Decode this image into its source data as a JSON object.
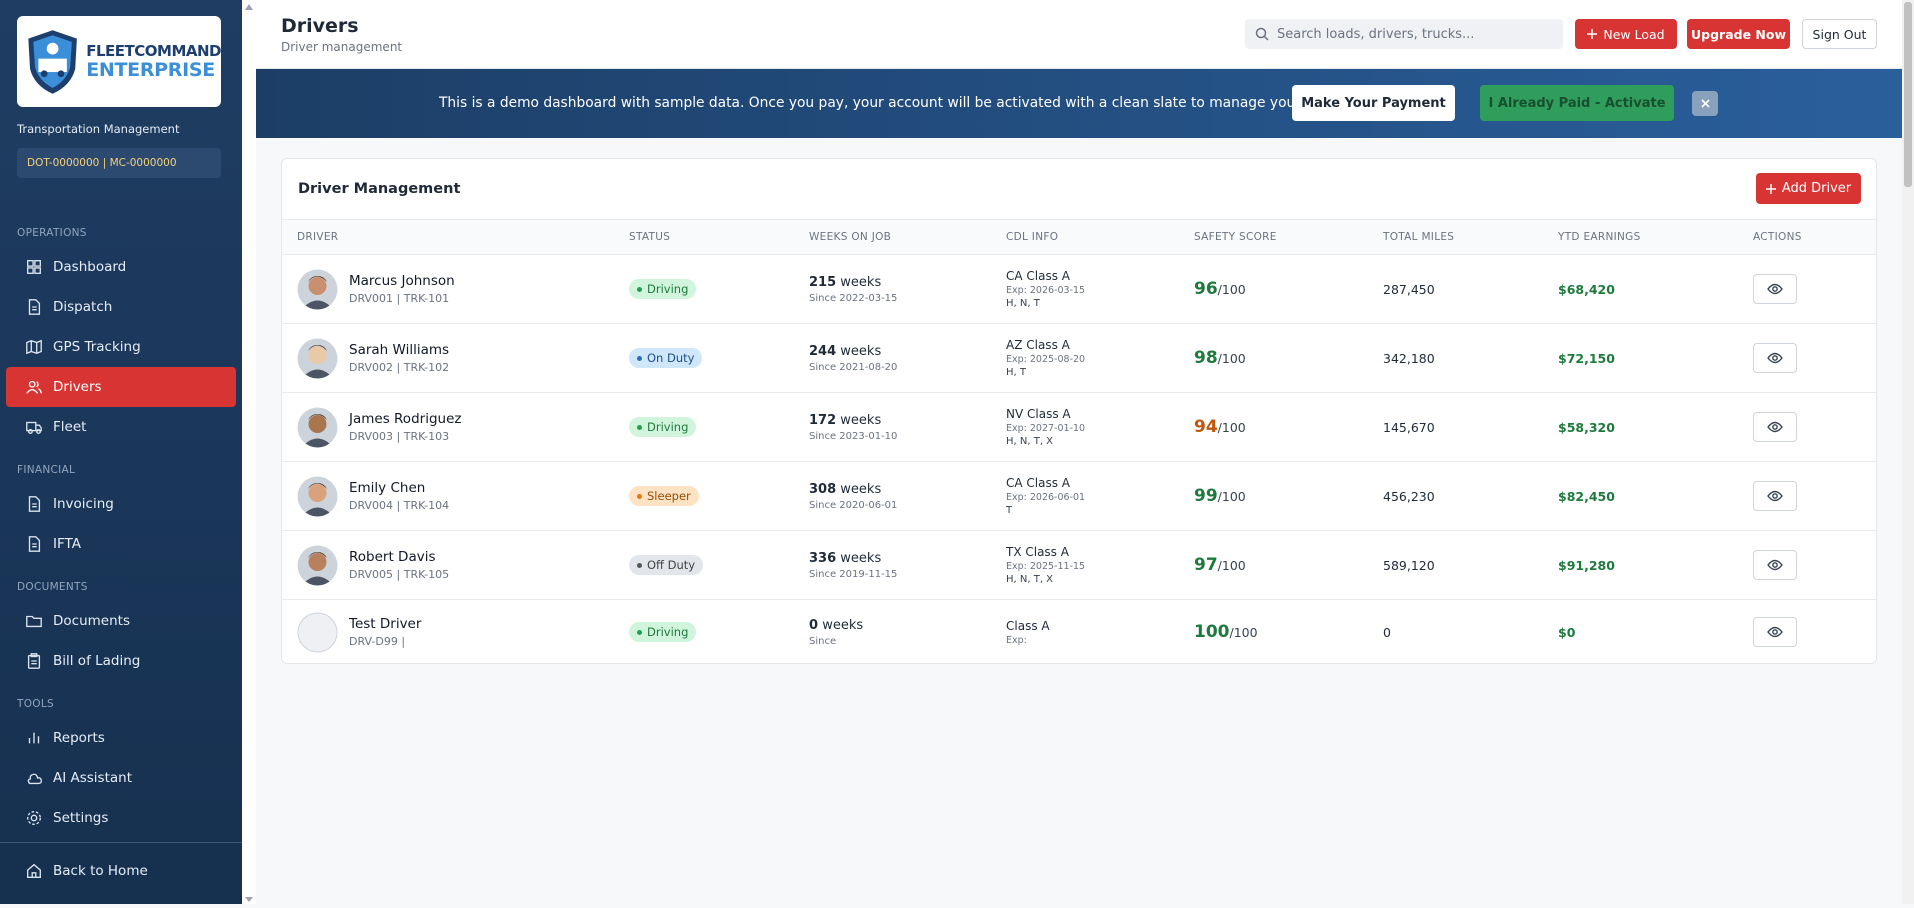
{
  "sidebar": {
    "logo_top": "FLEETCOMMAND",
    "logo_bottom": "ENTERPRISE",
    "subtitle": "Transportation Management",
    "dot": "DOT-0000000 | MC-0000000",
    "sections": [
      {
        "title": "OPERATIONS",
        "items": [
          {
            "label": "Dashboard",
            "icon": "grid"
          },
          {
            "label": "Dispatch",
            "icon": "doc"
          },
          {
            "label": "GPS Tracking",
            "icon": "map"
          },
          {
            "label": "Drivers",
            "icon": "users",
            "active": true
          },
          {
            "label": "Fleet",
            "icon": "truck"
          }
        ]
      },
      {
        "title": "FINANCIAL",
        "items": [
          {
            "label": "Invoicing",
            "icon": "doc"
          },
          {
            "label": "IFTA",
            "icon": "doc"
          }
        ]
      },
      {
        "title": "DOCUMENTS",
        "items": [
          {
            "label": "Documents",
            "icon": "folder"
          },
          {
            "label": "Bill of Lading",
            "icon": "clip"
          }
        ]
      },
      {
        "title": "TOOLS",
        "items": [
          {
            "label": "Reports",
            "icon": "chart"
          },
          {
            "label": "AI Assistant",
            "icon": "cloud"
          },
          {
            "label": "Settings",
            "icon": "gear"
          }
        ]
      }
    ],
    "footer": "Back to Home"
  },
  "header": {
    "title": "Drivers",
    "subtitle": "Driver management",
    "search_placeholder": "Search loads, drivers, trucks...",
    "new_load": "New Load",
    "upgrade": "Upgrade Now",
    "sign_out": "Sign Out"
  },
  "banner": {
    "text": "This is a demo dashboard with sample data. Once you pay, your account will be activated with a clean slate to manage your actual fleet.",
    "pay": "Make Your Payment",
    "paid": "I Already Paid - Activate"
  },
  "table": {
    "title": "Driver Management",
    "add_button": "Add Driver",
    "columns": [
      "DRIVER",
      "STATUS",
      "WEEKS ON JOB",
      "CDL INFO",
      "SAFETY SCORE",
      "TOTAL MILES",
      "YTD EARNINGS",
      "ACTIONS"
    ],
    "rows": [
      {
        "name": "Marcus Johnson",
        "id": "DRV001 | TRK-101",
        "photo": true,
        "status": "Driving",
        "status_tone": "green",
        "weeks": "215",
        "weeks_unit": "weeks",
        "since": "Since 2022-03-15",
        "cdl": "CA Class A",
        "exp": "Exp: 2026-03-15",
        "endorsements": "H, N, T",
        "score": "96",
        "score_max": "/100",
        "score_tone": "green",
        "miles": "287,450",
        "earnings": "$68,420"
      },
      {
        "name": "Sarah Williams",
        "id": "DRV002 | TRK-102",
        "photo": true,
        "status": "On Duty",
        "status_tone": "blue",
        "weeks": "244",
        "weeks_unit": "weeks",
        "since": "Since 2021-08-20",
        "cdl": "AZ Class A",
        "exp": "Exp: 2025-08-20",
        "endorsements": "H, T",
        "score": "98",
        "score_max": "/100",
        "score_tone": "green",
        "miles": "342,180",
        "earnings": "$72,150"
      },
      {
        "name": "James Rodriguez",
        "id": "DRV003 | TRK-103",
        "photo": true,
        "status": "Driving",
        "status_tone": "green",
        "weeks": "172",
        "weeks_unit": "weeks",
        "since": "Since 2023-01-10",
        "cdl": "NV Class A",
        "exp": "Exp: 2027-01-10",
        "endorsements": "H, N, T, X",
        "score": "94",
        "score_max": "/100",
        "score_tone": "orange",
        "miles": "145,670",
        "earnings": "$58,320"
      },
      {
        "name": "Emily Chen",
        "id": "DRV004 | TRK-104",
        "photo": true,
        "status": "Sleeper",
        "status_tone": "orange",
        "weeks": "308",
        "weeks_unit": "weeks",
        "since": "Since 2020-06-01",
        "cdl": "CA Class A",
        "exp": "Exp: 2026-06-01",
        "endorsements": "T",
        "score": "99",
        "score_max": "/100",
        "score_tone": "green",
        "miles": "456,230",
        "earnings": "$82,450"
      },
      {
        "name": "Robert Davis",
        "id": "DRV005 | TRK-105",
        "photo": true,
        "status": "Off Duty",
        "status_tone": "gray",
        "weeks": "336",
        "weeks_unit": "weeks",
        "since": "Since 2019-11-15",
        "cdl": "TX Class A",
        "exp": "Exp: 2025-11-15",
        "endorsements": "H, N, T, X",
        "score": "97",
        "score_max": "/100",
        "score_tone": "green",
        "miles": "589,120",
        "earnings": "$91,280"
      },
      {
        "name": "Test Driver",
        "id": "DRV-D99 |",
        "photo": false,
        "status": "Driving",
        "status_tone": "green",
        "weeks": "0",
        "weeks_unit": "weeks",
        "since": "Since",
        "cdl": "Class A",
        "exp": "Exp:",
        "score": "100",
        "score_max": "/100",
        "score_tone": "green",
        "miles": "0",
        "earnings": "$0"
      }
    ]
  }
}
